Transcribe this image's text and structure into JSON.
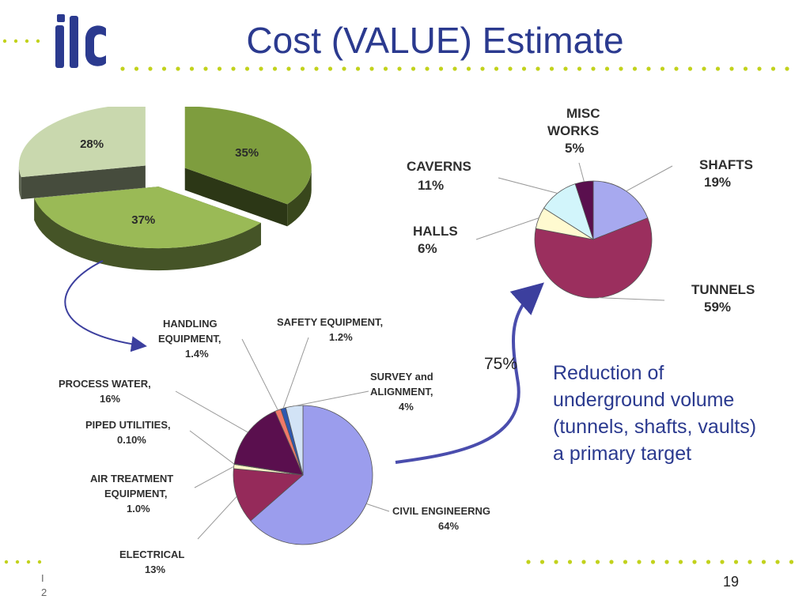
{
  "slide": {
    "title": "Cost (VALUE) Estimate",
    "note_lines": [
      "Reduction of",
      "underground volume",
      "(tunnels, shafts, vaults)",
      "a primary target"
    ],
    "reduction_percent": "75%",
    "page_number": "19",
    "footer_fragments": [
      "I",
      "2"
    ],
    "colors": {
      "title": "#2b3a8f",
      "dots": "#c2d21c",
      "arrow": "#3c3f9e"
    }
  },
  "chart_data": [
    {
      "type": "pie",
      "style": "3d-exploded",
      "title": "",
      "slices": [
        {
          "label": "",
          "value": 35,
          "display": "35%",
          "color": "#7e9d3e"
        },
        {
          "label": "",
          "value": 37,
          "display": "37%",
          "color": "#9aba56"
        },
        {
          "label": "",
          "value": 28,
          "display": "28%",
          "color": "#c9d8ae"
        }
      ]
    },
    {
      "type": "pie",
      "title": "",
      "slices": [
        {
          "label": "SHAFTS",
          "value": 19,
          "display": "19%",
          "color": "#a7a9ef"
        },
        {
          "label": "TUNNELS",
          "value": 59,
          "display": "59%",
          "color": "#9b2f5e"
        },
        {
          "label": "HALLS",
          "value": 6,
          "display": "6%",
          "color": "#fffad0"
        },
        {
          "label": "CAVERNS",
          "value": 11,
          "display": "11%",
          "color": "#d2f5fb"
        },
        {
          "label": "MISC WORKS",
          "value": 5,
          "display": "5%",
          "color": "#5a0f4e"
        }
      ]
    },
    {
      "type": "pie",
      "title": "",
      "slices": [
        {
          "label": "CIVIL ENGINEERNG",
          "value": 64,
          "display": "64%",
          "color": "#9b9ded"
        },
        {
          "label": "ELECTRICAL",
          "value": 13,
          "display": "13%",
          "color": "#952a5a"
        },
        {
          "label": "AIR TREATMENT EQUIPMENT,",
          "value": 1.0,
          "display": "1.0%",
          "color": "#fff6c8"
        },
        {
          "label": "PIPED UTILITIES,",
          "value": 0.1,
          "display": "0.10%",
          "color": "#cdeff6"
        },
        {
          "label": "PROCESS WATER,",
          "value": 16,
          "display": "16%",
          "color": "#5a0f4e"
        },
        {
          "label": "HANDLING EQUIPMENT,",
          "value": 1.4,
          "display": "1.4%",
          "color": "#f07968"
        },
        {
          "label": "SAFETY EQUIPMENT,",
          "value": 1.2,
          "display": "1.2%",
          "color": "#2e58b0"
        },
        {
          "label": "SURVEY and ALIGNMENT,",
          "value": 4,
          "display": "4%",
          "color": "#d2e3f6"
        }
      ]
    }
  ]
}
